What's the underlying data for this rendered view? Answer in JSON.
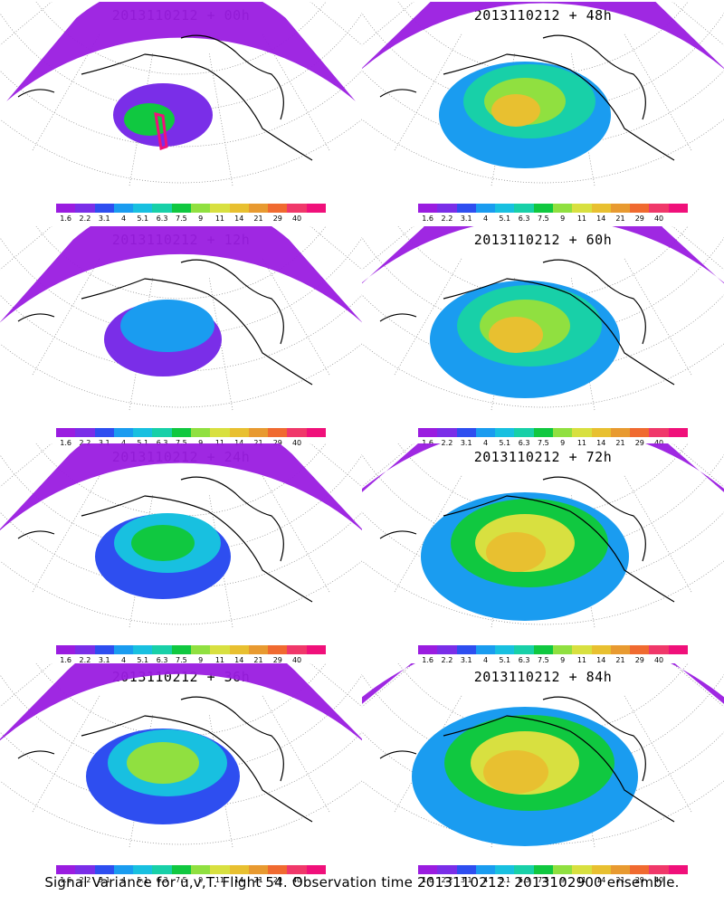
{
  "panels": [
    {
      "title": "2013110212 + 00h",
      "level": 0
    },
    {
      "title": "2013110212 + 48h",
      "level": 4
    },
    {
      "title": "2013110212 + 12h",
      "level": 1
    },
    {
      "title": "2013110212 + 60h",
      "level": 5
    },
    {
      "title": "2013110212 + 24h",
      "level": 2
    },
    {
      "title": "2013110212 + 72h",
      "level": 6
    },
    {
      "title": "2013110212 + 36h",
      "level": 3
    },
    {
      "title": "2013110212 + 84h",
      "level": 7
    }
  ],
  "colorbar": {
    "labels": [
      "1.6",
      "2.2",
      "3.1",
      "4",
      "5.1",
      "6.3",
      "7.5",
      "9",
      "11",
      "14",
      "21",
      "29",
      "40"
    ],
    "colors": [
      "#9a1ce0",
      "#7a2ee8",
      "#2e4ef0",
      "#1a9cf0",
      "#18c0e0",
      "#18d0a8",
      "#10c840",
      "#90e040",
      "#d8e040",
      "#e8c030",
      "#e89a30",
      "#f06a30",
      "#f0386a",
      "#f0107a"
    ]
  },
  "footer": "Signal Variance for u,v,T. Flight 54. Observation time 2013110212. 2013102900 ensemble."
}
